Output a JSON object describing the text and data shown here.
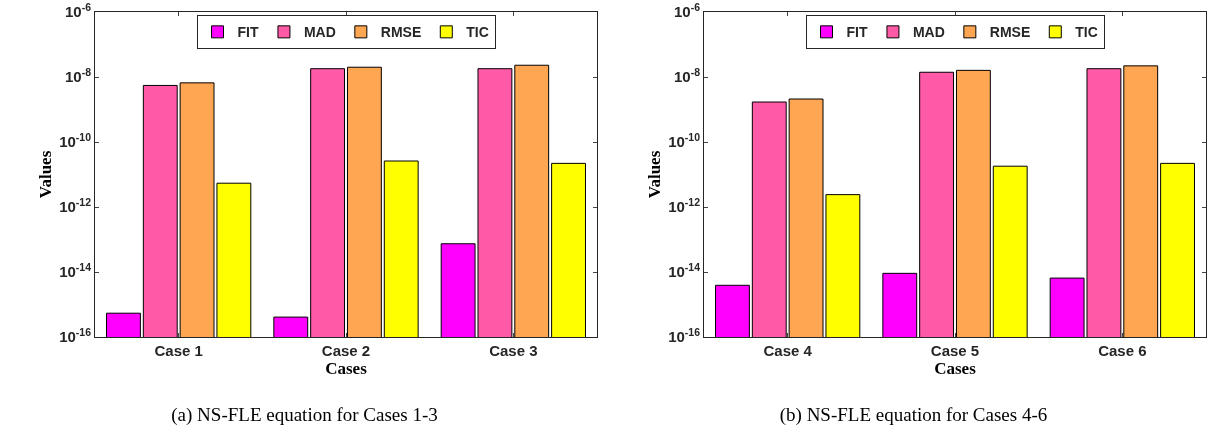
{
  "chart_data": [
    {
      "type": "bar",
      "title": "(a) NS-FLE equation for Cases 1-3",
      "xlabel": "Cases",
      "ylabel": "Values",
      "categories": [
        "Case 1",
        "Case 2",
        "Case 3"
      ],
      "log": "y",
      "ylim": [
        1e-16,
        1e-06
      ],
      "yticks": [
        {
          "value": 1e-16,
          "label": "10$^{-16}$"
        },
        {
          "value": 1e-14,
          "label": "10$^{-14}$"
        },
        {
          "value": 1e-12,
          "label": "10$^{-12}$"
        },
        {
          "value": 1e-10,
          "label": "10$^{-10}$"
        },
        {
          "value": 1e-08,
          "label": "10$^{-8}$"
        },
        {
          "value": 1e-06,
          "label": "10$^{-6}$"
        }
      ],
      "grid": false,
      "legend": "top",
      "series": [
        {
          "name": "FIT",
          "color": "#ff00ff",
          "values": [
            5.4e-16,
            4.1e-16,
            7.4e-14
          ]
        },
        {
          "name": "MAD",
          "color": "#ff5aa8",
          "values": [
            5.5e-09,
            1.8e-08,
            1.8e-08
          ]
        },
        {
          "name": "RMSE",
          "color": "#ffa652",
          "values": [
            6.6e-09,
            2e-08,
            2.3e-08
          ]
        },
        {
          "name": "TIC",
          "color": "#ffff00",
          "values": [
            5.4e-12,
            2.6e-11,
            2.2e-11
          ]
        }
      ]
    },
    {
      "type": "bar",
      "title": "(b) NS-FLE equation for Cases 4-6",
      "xlabel": "Cases",
      "ylabel": "Values",
      "categories": [
        "Case 4",
        "Case 5",
        "Case 6"
      ],
      "log": "y",
      "ylim": [
        1e-16,
        1e-06
      ],
      "yticks": [
        {
          "value": 1e-16,
          "label": "10$^{-16}$"
        },
        {
          "value": 1e-14,
          "label": "10$^{-14}$"
        },
        {
          "value": 1e-12,
          "label": "10$^{-12}$"
        },
        {
          "value": 1e-10,
          "label": "10$^{-10}$"
        },
        {
          "value": 1e-08,
          "label": "10$^{-8}$"
        },
        {
          "value": 1e-06,
          "label": "10$^{-6}$"
        }
      ],
      "grid": false,
      "legend": "top",
      "series": [
        {
          "name": "FIT",
          "color": "#ff00ff",
          "values": [
            3.9e-15,
            9.1e-15,
            6.5e-15
          ]
        },
        {
          "name": "MAD",
          "color": "#ff5aa8",
          "values": [
            1.7e-09,
            1.4e-08,
            1.8e-08
          ]
        },
        {
          "name": "RMSE",
          "color": "#ffa652",
          "values": [
            2.1e-09,
            1.6e-08,
            2.2e-08
          ]
        },
        {
          "name": "TIC",
          "color": "#ffff00",
          "values": [
            2.4e-12,
            1.8e-11,
            2.2e-11
          ]
        }
      ]
    }
  ]
}
